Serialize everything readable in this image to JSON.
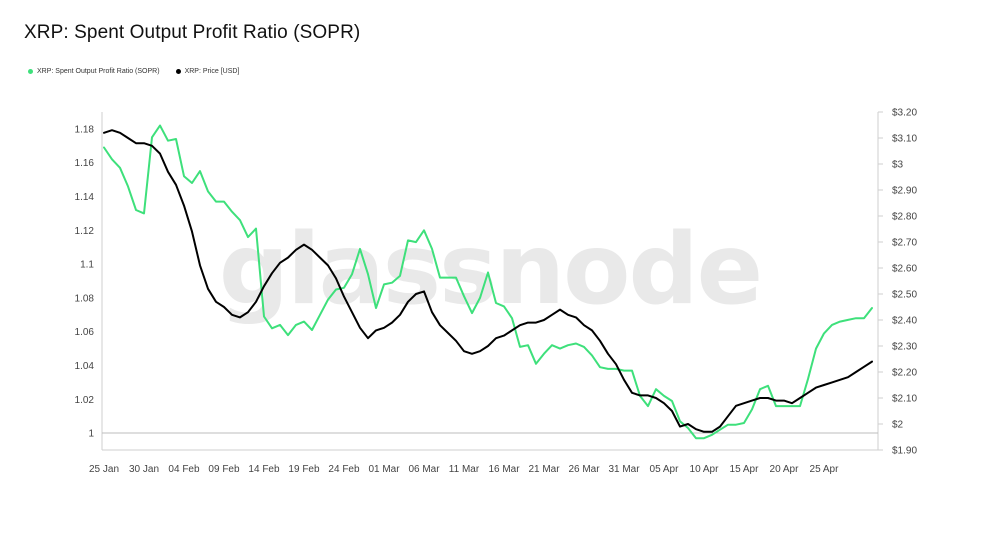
{
  "title": "XRP: Spent Output Profit Ratio (SOPR)",
  "watermark": "glassnode",
  "legend": [
    {
      "label": "XRP: Spent Output Profit Ratio (SOPR)",
      "color": "#3ee07b"
    },
    {
      "label": "XRP: Price [USD]",
      "color": "#000000"
    }
  ],
  "chart_data": {
    "type": "line",
    "title": "XRP: Spent Output Profit Ratio (SOPR)",
    "x_ticks": [
      "25 Jan",
      "30 Jan",
      "04 Feb",
      "09 Feb",
      "14 Feb",
      "19 Feb",
      "24 Feb",
      "01 Mar",
      "06 Mar",
      "11 Mar",
      "16 Mar",
      "21 Mar",
      "26 Mar",
      "31 Mar",
      "05 Apr",
      "10 Apr",
      "15 Apr",
      "20 Apr",
      "25 Apr"
    ],
    "y_left": {
      "ticks": [
        "1",
        "1.02",
        "1.04",
        "1.06",
        "1.08",
        "1.1",
        "1.12",
        "1.14",
        "1.16",
        "1.18"
      ],
      "range": [
        0.99,
        1.19
      ]
    },
    "y_right": {
      "ticks": [
        "$1.90",
        "$2",
        "$2.10",
        "$2.20",
        "$2.30",
        "$2.40",
        "$2.50",
        "$2.60",
        "$2.70",
        "$2.80",
        "$2.90",
        "$3",
        "$3.10",
        "$3.20"
      ],
      "range": [
        1.9,
        3.2
      ]
    },
    "grid": false,
    "legend_position": "top-left",
    "series": [
      {
        "name": "XRP: Spent Output Profit Ratio (SOPR)",
        "axis": "left",
        "color": "#3ee07b",
        "values": [
          1.169,
          1.162,
          1.157,
          1.146,
          1.132,
          1.13,
          1.175,
          1.182,
          1.173,
          1.174,
          1.152,
          1.148,
          1.155,
          1.143,
          1.137,
          1.137,
          1.131,
          1.126,
          1.116,
          1.121,
          1.069,
          1.062,
          1.064,
          1.058,
          1.064,
          1.066,
          1.061,
          1.07,
          1.079,
          1.085,
          1.086,
          1.094,
          1.109,
          1.094,
          1.074,
          1.088,
          1.089,
          1.093,
          1.114,
          1.113,
          1.12,
          1.109,
          1.092,
          1.092,
          1.092,
          1.081,
          1.071,
          1.08,
          1.095,
          1.077,
          1.075,
          1.068,
          1.051,
          1.052,
          1.041,
          1.047,
          1.052,
          1.05,
          1.052,
          1.053,
          1.051,
          1.046,
          1.039,
          1.038,
          1.038,
          1.037,
          1.037,
          1.022,
          1.016,
          1.026,
          1.022,
          1.019,
          1.007,
          1.003,
          0.997,
          0.997,
          0.999,
          1.002,
          1.005,
          1.005,
          1.006,
          1.014,
          1.026,
          1.028,
          1.016,
          1.016,
          1.016,
          1.016,
          1.032,
          1.05,
          1.059,
          1.064,
          1.066,
          1.067,
          1.068,
          1.068,
          1.074
        ]
      },
      {
        "name": "XRP: Price [USD]",
        "axis": "right",
        "color": "#000000",
        "values": [
          3.12,
          3.13,
          3.12,
          3.1,
          3.08,
          3.08,
          3.07,
          3.04,
          2.97,
          2.92,
          2.84,
          2.74,
          2.61,
          2.52,
          2.47,
          2.45,
          2.42,
          2.41,
          2.43,
          2.47,
          2.53,
          2.58,
          2.62,
          2.64,
          2.67,
          2.69,
          2.67,
          2.64,
          2.61,
          2.56,
          2.49,
          2.43,
          2.37,
          2.33,
          2.36,
          2.37,
          2.39,
          2.42,
          2.47,
          2.5,
          2.51,
          2.43,
          2.38,
          2.35,
          2.32,
          2.28,
          2.27,
          2.28,
          2.3,
          2.33,
          2.34,
          2.36,
          2.38,
          2.39,
          2.39,
          2.4,
          2.42,
          2.44,
          2.42,
          2.41,
          2.38,
          2.36,
          2.32,
          2.27,
          2.23,
          2.17,
          2.12,
          2.11,
          2.11,
          2.1,
          2.08,
          2.05,
          1.99,
          2.0,
          1.98,
          1.97,
          1.97,
          1.99,
          2.03,
          2.07,
          2.08,
          2.09,
          2.1,
          2.1,
          2.09,
          2.09,
          2.08,
          2.1,
          2.12,
          2.14,
          2.15,
          2.16,
          2.17,
          2.18,
          2.2,
          2.22,
          2.24
        ]
      }
    ]
  }
}
